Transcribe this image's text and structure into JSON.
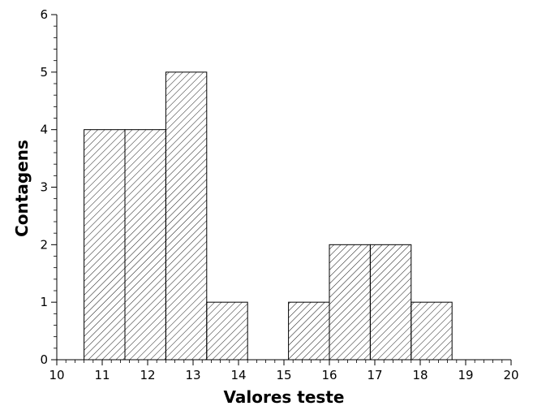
{
  "chart_data": {
    "type": "bar",
    "title": "",
    "xlabel": "Valores teste",
    "ylabel": "Contagens",
    "xlim": [
      10,
      20
    ],
    "ylim": [
      0,
      6
    ],
    "x_ticks": [
      "10",
      "11",
      "12",
      "13",
      "14",
      "15",
      "16",
      "17",
      "18",
      "19",
      "20"
    ],
    "y_ticks": [
      "0",
      "1",
      "2",
      "3",
      "4",
      "5",
      "6"
    ],
    "bins": [
      {
        "start": 10.6,
        "end": 11.5,
        "value": 4
      },
      {
        "start": 11.5,
        "end": 12.4,
        "value": 4
      },
      {
        "start": 12.4,
        "end": 13.3,
        "value": 5
      },
      {
        "start": 13.3,
        "end": 14.2,
        "value": 1
      },
      {
        "start": 14.2,
        "end": 15.1,
        "value": 0
      },
      {
        "start": 15.1,
        "end": 16.0,
        "value": 1
      },
      {
        "start": 16.0,
        "end": 16.9,
        "value": 2
      },
      {
        "start": 16.9,
        "end": 17.8,
        "value": 2
      },
      {
        "start": 17.8,
        "end": 18.7,
        "value": 1
      }
    ],
    "fill_pattern": "diagonal-hatch",
    "bar_edge_color": "#000000",
    "grid": false,
    "legend": "none"
  }
}
